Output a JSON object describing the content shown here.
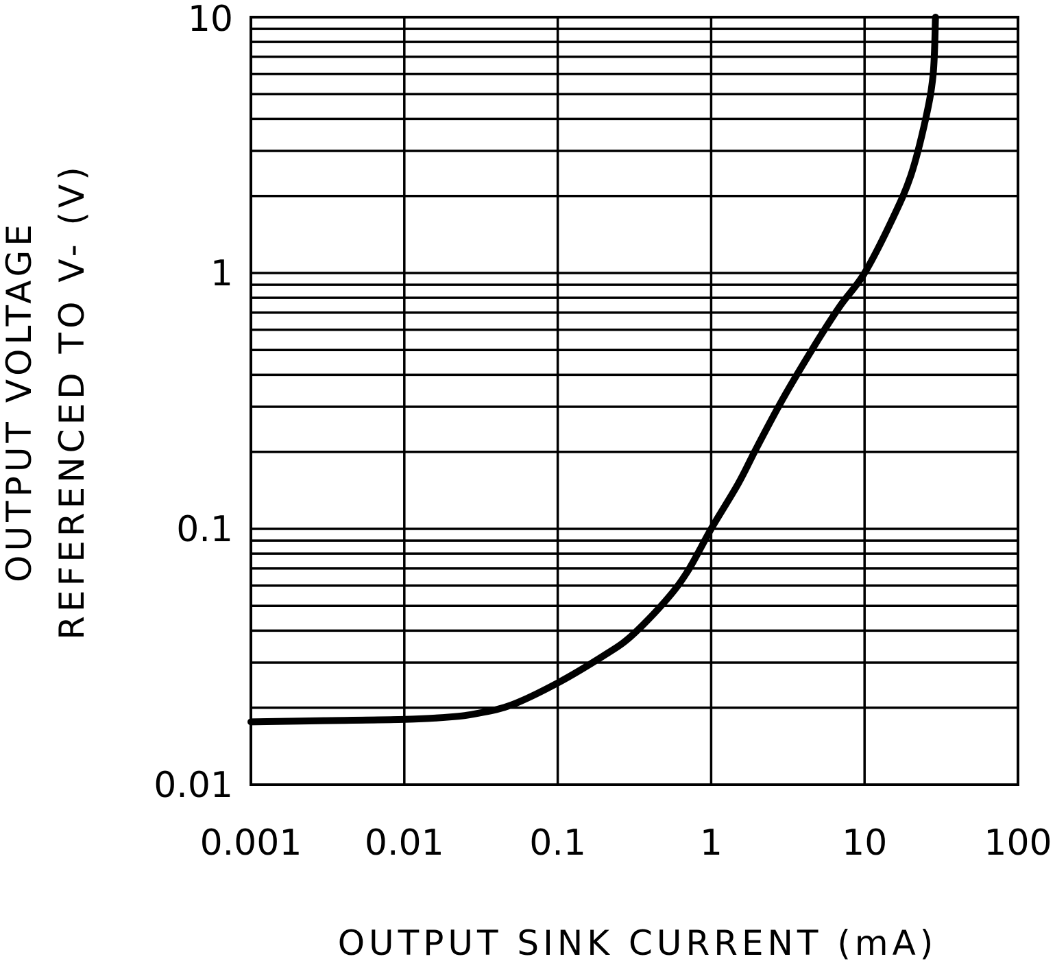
{
  "chart_data": {
    "type": "line",
    "title": "",
    "xlabel": "OUTPUT SINK CURRENT (mA)",
    "ylabel_line1": "OUTPUT VOLTAGE",
    "ylabel_line2": "REFERENCED TO V- (V)",
    "xscale": "log",
    "yscale": "log",
    "xlim": [
      0.001,
      100
    ],
    "ylim": [
      0.01,
      10
    ],
    "grid": true,
    "x_ticks": [
      0.001,
      0.01,
      0.1,
      1,
      10,
      100
    ],
    "x_tick_labels": [
      "0.001",
      "0.01",
      "0.1",
      "1",
      "10",
      "100"
    ],
    "y_ticks": [
      0.01,
      0.1,
      1,
      10
    ],
    "y_tick_labels": [
      "0.01",
      "0.1",
      "1",
      "10"
    ],
    "series": [
      {
        "x": [
          0.001,
          0.003,
          0.01,
          0.02,
          0.03,
          0.05,
          0.1,
          0.2,
          0.3,
          0.5,
          0.7,
          1,
          1.5,
          2,
          3,
          5,
          7,
          10,
          15,
          20,
          25,
          28,
          29
        ],
        "y": [
          0.0176,
          0.0178,
          0.018,
          0.0184,
          0.019,
          0.0205,
          0.025,
          0.032,
          0.038,
          0.052,
          0.068,
          0.1,
          0.15,
          0.21,
          0.33,
          0.55,
          0.75,
          1.0,
          1.6,
          2.4,
          4.0,
          6.0,
          10.0
        ],
        "color": "#000000"
      }
    ]
  }
}
